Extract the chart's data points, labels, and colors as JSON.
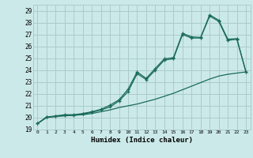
{
  "xlabel": "Humidex (Indice chaleur)",
  "bg_color": "#cce9e9",
  "grid_color": "#aacccc",
  "line_color": "#1a6b5a",
  "xlim": [
    -0.5,
    23.5
  ],
  "ylim": [
    19.0,
    29.5
  ],
  "xticks": [
    0,
    1,
    2,
    3,
    4,
    5,
    6,
    7,
    8,
    9,
    10,
    11,
    12,
    13,
    14,
    15,
    16,
    17,
    18,
    19,
    20,
    21,
    22,
    23
  ],
  "yticks": [
    19,
    20,
    21,
    22,
    23,
    24,
    25,
    26,
    27,
    28,
    29
  ],
  "line1_y": [
    19.5,
    20.0,
    20.1,
    20.15,
    20.2,
    20.25,
    20.35,
    20.5,
    20.65,
    20.85,
    21.0,
    21.15,
    21.35,
    21.55,
    21.8,
    22.05,
    22.35,
    22.65,
    22.95,
    23.25,
    23.5,
    23.65,
    23.75,
    23.85
  ],
  "line2_y": [
    19.5,
    20.05,
    20.1,
    20.2,
    20.2,
    20.3,
    20.45,
    20.65,
    20.9,
    21.4,
    22.2,
    23.7,
    23.2,
    24.0,
    24.85,
    24.95,
    27.0,
    26.7,
    26.7,
    28.55,
    28.1,
    26.5,
    26.6,
    23.85
  ],
  "line3_y": [
    19.5,
    20.05,
    20.15,
    20.25,
    20.25,
    20.35,
    20.5,
    20.7,
    21.05,
    21.5,
    22.4,
    23.85,
    23.3,
    24.15,
    24.95,
    25.05,
    27.1,
    26.8,
    26.75,
    28.65,
    28.2,
    26.6,
    26.65,
    23.85
  ]
}
